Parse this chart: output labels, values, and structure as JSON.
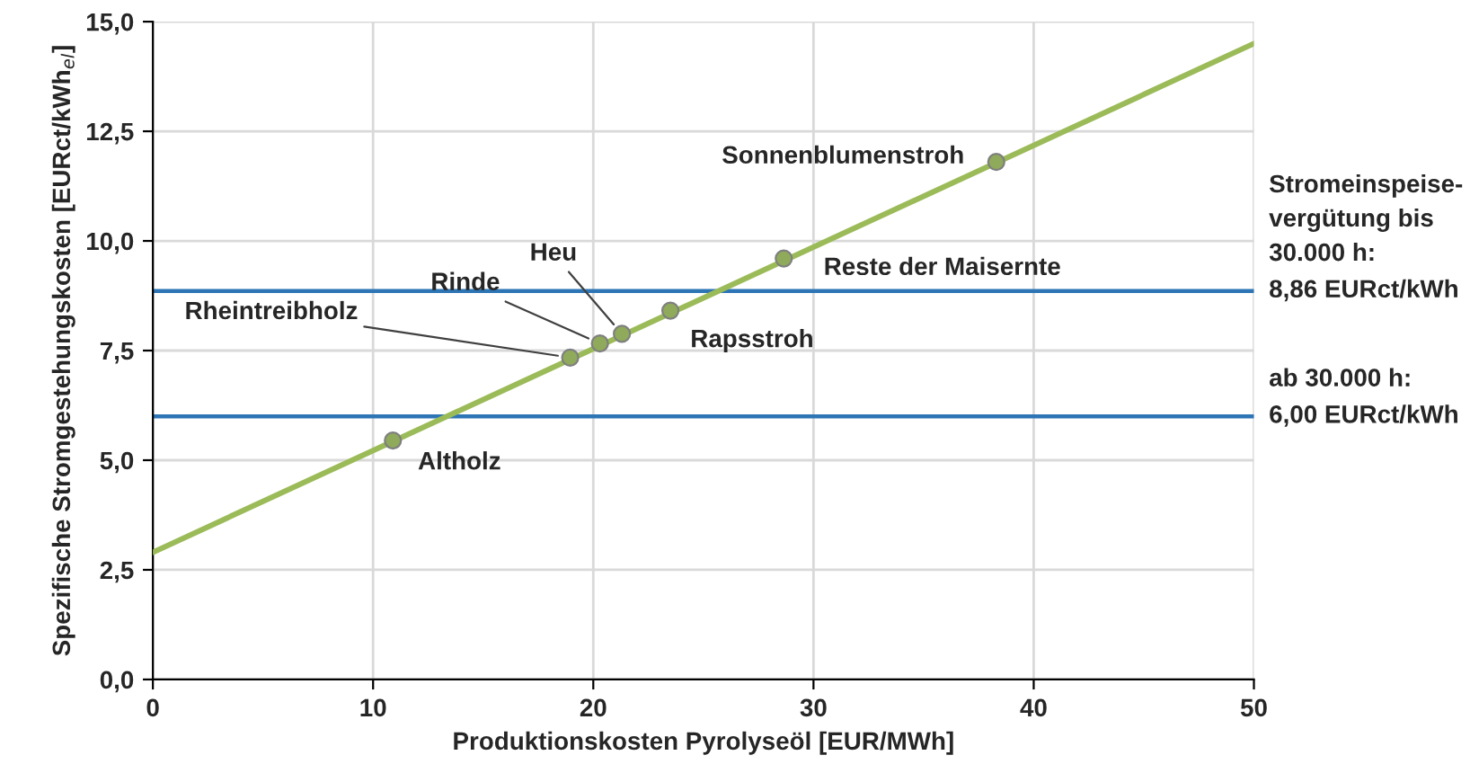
{
  "chart_data": {
    "type": "line",
    "xlabel": "Produktionskosten Pyrolyseöl [EUR/MWh]",
    "ylabel": "Spezifische Stromgestehungskosten [EURct/kWh$_{el}$]",
    "xlim": [
      0,
      50
    ],
    "xticks": [
      0,
      10,
      20,
      30,
      40,
      50
    ],
    "ylim": [
      0,
      15
    ],
    "yticks": [
      {
        "value": 0,
        "label": "0,0"
      },
      {
        "value": 2.5,
        "label": "2,5"
      },
      {
        "value": 5,
        "label": "5,0"
      },
      {
        "value": 7.5,
        "label": "7,5"
      },
      {
        "value": 10,
        "label": "10,0"
      },
      {
        "value": 12.5,
        "label": "12,5"
      },
      {
        "value": 15,
        "label": "15,0"
      }
    ],
    "grid": true,
    "legend": false,
    "series": [
      {
        "color": "#9bbb59",
        "x": [
          0,
          50
        ],
        "values": [
          2.9,
          14.5
        ],
        "marker": "none"
      },
      {
        "type": "scatter",
        "color": "#8faa5a",
        "marker": "circle",
        "x": [
          10.9,
          18.95,
          20.3,
          21.3,
          23.5,
          28.65,
          38.3
        ],
        "values": [
          5.45,
          7.34,
          7.66,
          7.88,
          8.41,
          9.6,
          11.8
        ]
      }
    ],
    "ref_lines": [
      {
        "axis": "y",
        "value": 8.86,
        "label": "8,86 EURct/kWh",
        "color": "#2e75b6"
      },
      {
        "axis": "y",
        "value": 6.0,
        "label": "6,00 EURct/kWh",
        "color": "#2e75b6"
      }
    ],
    "annotations": [
      {
        "text": "Altholz",
        "x": 10.9,
        "y": 5.45
      },
      {
        "text": "Rheintreibholz",
        "x": 18.95,
        "y": 7.34
      },
      {
        "text": "Rinde",
        "x": 20.3,
        "y": 7.66
      },
      {
        "text": "Heu",
        "x": 21.3,
        "y": 7.88
      },
      {
        "text": "Rapsstroh",
        "x": 23.5,
        "y": 8.41
      },
      {
        "text": "Reste der Maisernte",
        "x": 28.65,
        "y": 9.6
      },
      {
        "text": "Sonnenblumenstroh",
        "x": 38.3,
        "y": 11.8
      },
      "Stromeinspeise-\nvergütung bis\n30.000 h:",
      "ab 30.000 h:"
    ]
  }
}
